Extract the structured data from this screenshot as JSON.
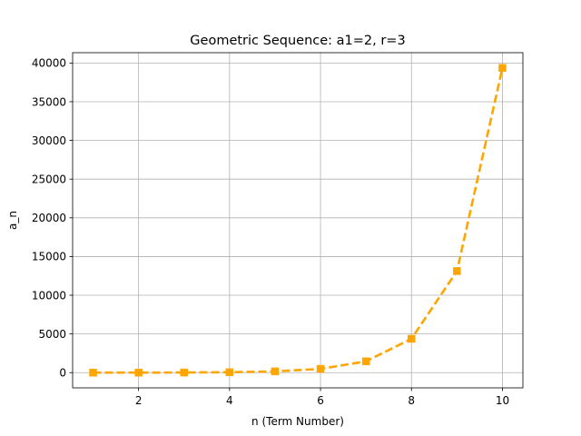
{
  "chart_data": {
    "type": "line",
    "title": "Geometric Sequence: a1=2, r=3",
    "xlabel": "n (Term Number)",
    "ylabel": "a_n",
    "x": [
      1,
      2,
      3,
      4,
      5,
      6,
      7,
      8,
      9,
      10
    ],
    "series": [
      {
        "values": [
          2,
          6,
          18,
          54,
          162,
          486,
          1458,
          4374,
          13122,
          39366
        ],
        "color": "#FFA500",
        "line_style": "dashed",
        "marker": "square"
      }
    ],
    "xlim": [
      0.55,
      10.45
    ],
    "ylim": [
      -1966.2,
      41334.2
    ],
    "xticks": [
      2,
      4,
      6,
      8,
      10
    ],
    "yticks": [
      0,
      5000,
      10000,
      15000,
      20000,
      25000,
      30000,
      35000,
      40000
    ],
    "grid": true
  }
}
